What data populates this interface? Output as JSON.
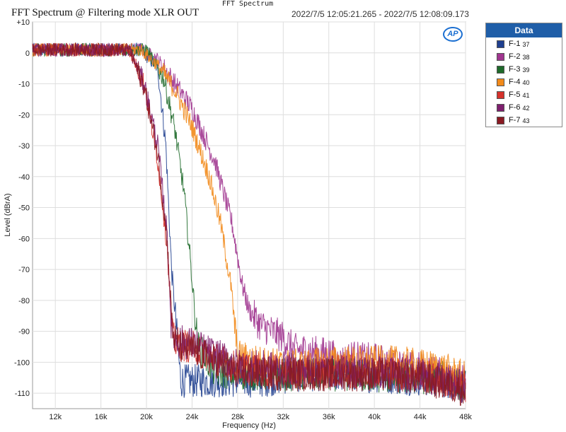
{
  "window_title": "FFT Spectrum",
  "graph": {
    "title": "FFT Spectrum @ Filtering mode XLR OUT",
    "time_range": "2022/7/5 12:05:21.265 - 2022/7/5 12:08:09.173",
    "logo": "AP"
  },
  "legend": {
    "title": "Data",
    "items": [
      {
        "name": "F-1",
        "id": "37",
        "color": "#1f3f8f"
      },
      {
        "name": "F-2",
        "id": "38",
        "color": "#a0358f"
      },
      {
        "name": "F-3",
        "id": "39",
        "color": "#1e6a2a"
      },
      {
        "name": "F-4",
        "id": "40",
        "color": "#f28a1a"
      },
      {
        "name": "F-5",
        "id": "41",
        "color": "#d5322c"
      },
      {
        "name": "F-6",
        "id": "42",
        "color": "#7e1f6e"
      },
      {
        "name": "F-7",
        "id": "43",
        "color": "#8a1a22"
      }
    ]
  },
  "chart_data": {
    "type": "line",
    "title": "FFT Spectrum @ Filtering mode XLR OUT",
    "xlabel": "Frequency (Hz)",
    "ylabel": "Level (dBrA)",
    "xlim": [
      10000,
      48000
    ],
    "ylim": [
      -115,
      10
    ],
    "x_ticks": [
      12000,
      16000,
      20000,
      24000,
      28000,
      32000,
      36000,
      40000,
      44000,
      48000
    ],
    "x_tick_labels": [
      "12k",
      "16k",
      "20k",
      "24k",
      "28k",
      "32k",
      "36k",
      "40k",
      "44k",
      "48k"
    ],
    "y_ticks": [
      10,
      0,
      -10,
      -20,
      -30,
      -40,
      -50,
      -60,
      -70,
      -80,
      -90,
      -100,
      -110
    ],
    "y_tick_labels": [
      "+10",
      "0",
      "-10",
      "-20",
      "-30",
      "-40",
      "-50",
      "-60",
      "-70",
      "-80",
      "-90",
      "-100",
      "-110"
    ],
    "grid": true,
    "series": [
      {
        "name": "F-1 37",
        "color": "#1f3f8f",
        "x": [
          10000,
          19500,
          21000,
          21700,
          22200,
          23000,
          26000,
          30000,
          34000,
          38000,
          42000,
          46000,
          48000
        ],
        "y": [
          1,
          1,
          -5,
          -30,
          -70,
          -106,
          -106,
          -106,
          -104,
          -104,
          -105,
          -106,
          -108
        ]
      },
      {
        "name": "F-2 38",
        "color": "#a0358f",
        "x": [
          10000,
          19500,
          21000,
          22500,
          24000,
          26000,
          27500,
          28400,
          29000,
          30000,
          31000,
          32000,
          33000,
          34000,
          35000,
          36000,
          37000,
          38000,
          39000,
          40000,
          42000,
          44000,
          46000,
          48000
        ],
        "y": [
          1,
          1,
          -2,
          -10,
          -18,
          -35,
          -55,
          -75,
          -83,
          -88,
          -90,
          -92,
          -96,
          -96,
          -97,
          -97,
          -100,
          -98,
          -99,
          -99,
          -101,
          -102,
          -104,
          -106
        ]
      },
      {
        "name": "F-3 39",
        "color": "#1e6a2a",
        "x": [
          10000,
          20000,
          21500,
          22500,
          23300,
          23800,
          24200,
          24500,
          26000,
          30000,
          34000,
          38000,
          42000,
          46000,
          48000
        ],
        "y": [
          1,
          1,
          -8,
          -25,
          -45,
          -65,
          -82,
          -95,
          -103,
          -104,
          -104,
          -104,
          -105,
          -105,
          -108
        ]
      },
      {
        "name": "F-4 40",
        "color": "#f28a1a",
        "x": [
          10000,
          19500,
          21000,
          22500,
          24000,
          25500,
          26500,
          27400,
          28000,
          30000,
          32000,
          34000,
          36000,
          38000,
          40000,
          42000,
          44000,
          46000,
          48000
        ],
        "y": [
          1,
          1,
          -4,
          -12,
          -24,
          -40,
          -55,
          -75,
          -98,
          -100,
          -101,
          -101,
          -100,
          -100,
          -100,
          -100,
          -101,
          -102,
          -105
        ]
      },
      {
        "name": "F-5 41",
        "color": "#d5322c",
        "x": [
          10000,
          18500,
          19800,
          21000,
          21800,
          22300,
          22700,
          24000,
          28000,
          32000,
          36000,
          40000,
          44000,
          48000
        ],
        "y": [
          1,
          1,
          -10,
          -35,
          -62,
          -92,
          -94,
          -95,
          -102,
          -103,
          -103,
          -103,
          -104,
          -108
        ]
      },
      {
        "name": "F-6 42",
        "color": "#7e1f6e",
        "x": [
          10000,
          18500,
          19800,
          21000,
          21800,
          22200,
          22700,
          24000,
          28000,
          32000,
          36000,
          40000,
          44000,
          48000
        ],
        "y": [
          1,
          1,
          -10,
          -30,
          -58,
          -90,
          -93,
          -94,
          -101,
          -102,
          -103,
          -103,
          -104,
          -108
        ]
      },
      {
        "name": "F-7 43",
        "color": "#8a1a22",
        "x": [
          10000,
          18500,
          19800,
          21000,
          21800,
          22300,
          22800,
          24000,
          28000,
          32000,
          36000,
          40000,
          44000,
          48000
        ],
        "y": [
          1,
          1,
          -11,
          -33,
          -60,
          -91,
          -95,
          -96,
          -103,
          -104,
          -104,
          -104,
          -105,
          -109
        ]
      }
    ]
  }
}
